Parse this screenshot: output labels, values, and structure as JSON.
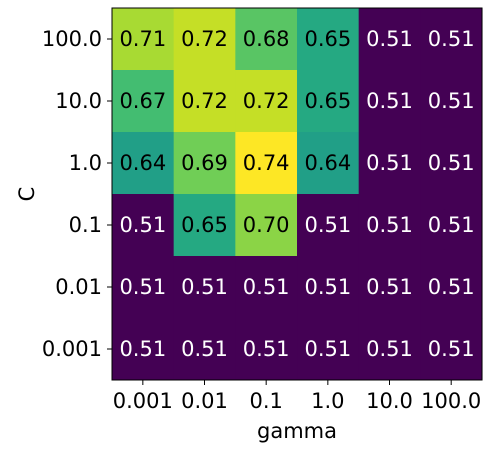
{
  "chart_data": {
    "type": "heatmap",
    "title": "",
    "xlabel": "gamma",
    "ylabel": "C",
    "x_categories": [
      "0.001",
      "0.01",
      "0.1",
      "1.0",
      "10.0",
      "100.0"
    ],
    "y_categories": [
      "100.0",
      "10.0",
      "1.0",
      "0.1",
      "0.01",
      "0.001"
    ],
    "values": [
      [
        0.71,
        0.72,
        0.68,
        0.65,
        0.51,
        0.51
      ],
      [
        0.67,
        0.72,
        0.72,
        0.65,
        0.51,
        0.51
      ],
      [
        0.64,
        0.69,
        0.74,
        0.64,
        0.51,
        0.51
      ],
      [
        0.51,
        0.65,
        0.7,
        0.51,
        0.51,
        0.51
      ],
      [
        0.51,
        0.51,
        0.51,
        0.51,
        0.51,
        0.51
      ],
      [
        0.51,
        0.51,
        0.51,
        0.51,
        0.51,
        0.51
      ]
    ],
    "value_format": "0.00",
    "colormap": "viridis",
    "color_range": [
      0.51,
      0.74
    ]
  }
}
